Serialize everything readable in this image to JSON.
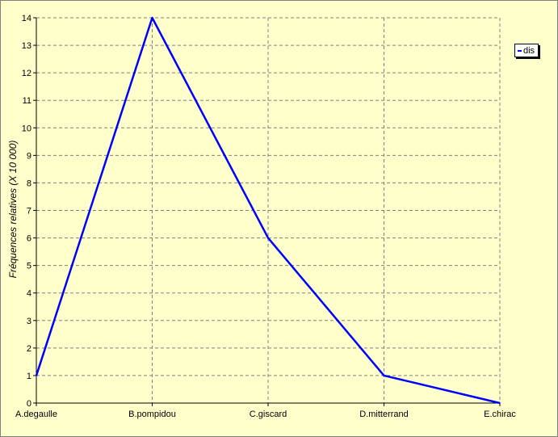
{
  "chart_data": {
    "type": "line",
    "title": "",
    "xlabel": "",
    "ylabel": "Fréquences relatives (X 10 000)",
    "categories": [
      "A.degaulle",
      "B.pompidou",
      "C.giscard",
      "D.mitterrand",
      "E.chirac"
    ],
    "series": [
      {
        "name": "dis",
        "values": [
          1,
          14,
          6,
          1,
          0
        ],
        "color": "#0000FF"
      }
    ],
    "ylim": [
      0,
      14
    ],
    "yticks": [
      0,
      1,
      2,
      3,
      4,
      5,
      6,
      7,
      8,
      9,
      10,
      11,
      12,
      13,
      14
    ],
    "grid": true,
    "legend_position": "top-right"
  },
  "colors": {
    "background": "#FFFFCC",
    "grid": "#808080",
    "axis": "#000000",
    "series": "#0000FF"
  }
}
